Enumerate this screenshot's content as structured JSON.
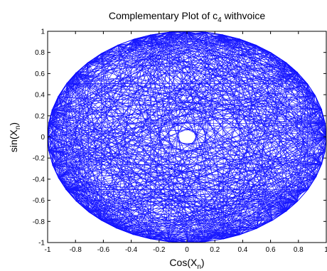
{
  "chart_data": {
    "type": "line",
    "title": {
      "main": "Complementary Plot of c",
      "subscript": "4",
      "suffix": " withvoice"
    },
    "xlabel": {
      "main": "Cos(X",
      "subscript": "n",
      "suffix": ")"
    },
    "ylabel": {
      "main": "sin(X",
      "subscript": "n",
      "suffix": ")"
    },
    "xlim": [
      -1,
      1
    ],
    "ylim": [
      -1,
      1
    ],
    "xticks": [
      "-1",
      "-0.8",
      "-0.6",
      "-0.4",
      "-0.2",
      "0",
      "0.2",
      "0.4",
      "0.6",
      "0.8",
      "1"
    ],
    "yticks": [
      "-1",
      "-0.8",
      "-0.6",
      "-0.4",
      "-0.2",
      "0",
      "0.2",
      "0.4",
      "0.6",
      "0.8",
      "1"
    ],
    "grid": false,
    "series": [
      {
        "color": "#0000ff",
        "trace_description": "dense web of chords connecting points on the unit circle, leaving a small empty hole near the origin",
        "inner_hole_radius": 0.05
      }
    ]
  }
}
